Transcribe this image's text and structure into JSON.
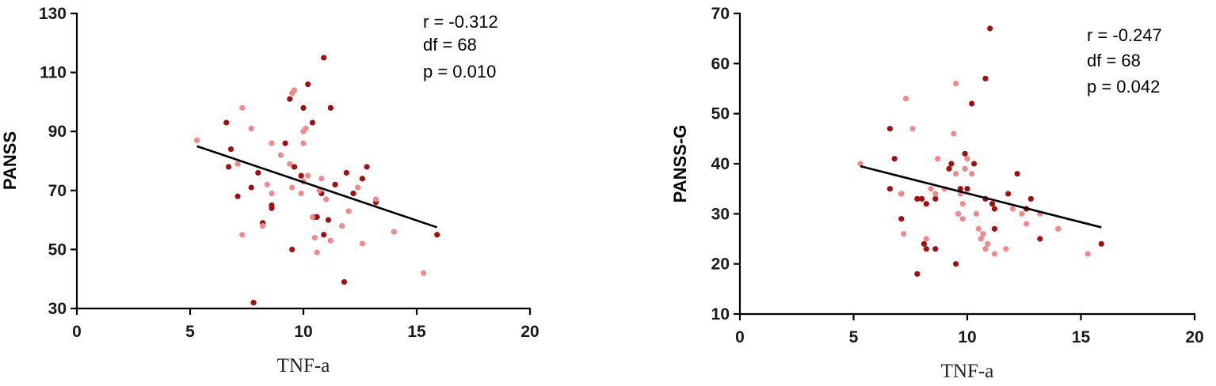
{
  "colors": {
    "dark": "#a30f0f",
    "light": "#f2888a",
    "line": "#000000"
  },
  "chart_data": [
    {
      "type": "scatter",
      "xlabel": "TNF-a",
      "ylabel": "PANSS",
      "xlim": [
        0,
        20
      ],
      "ylim": [
        30,
        130
      ],
      "xticks": [
        "0",
        "5",
        "10",
        "15",
        "20"
      ],
      "yticks": [
        "30",
        "50",
        "70",
        "90",
        "110",
        "130"
      ],
      "stats": [
        "r = -0.312",
        "df = 68",
        "p = 0.010"
      ],
      "fit": {
        "x": [
          5.3,
          15.9
        ],
        "y": [
          85,
          57.5
        ]
      },
      "series": [
        {
          "color": "dark",
          "points": [
            [
              6.6,
              93
            ],
            [
              6.7,
              78
            ],
            [
              6.8,
              84
            ],
            [
              7.1,
              68
            ],
            [
              7.7,
              71
            ],
            [
              7.8,
              32
            ],
            [
              8.0,
              76
            ],
            [
              8.2,
              59
            ],
            [
              8.6,
              65
            ],
            [
              8.6,
              64
            ],
            [
              9.2,
              86
            ],
            [
              9.4,
              101
            ],
            [
              9.5,
              50
            ],
            [
              9.6,
              78
            ],
            [
              9.9,
              75
            ],
            [
              10.0,
              98
            ],
            [
              10.2,
              106
            ],
            [
              10.4,
              93
            ],
            [
              10.5,
              61
            ],
            [
              10.6,
              61
            ],
            [
              10.8,
              69
            ],
            [
              10.9,
              55
            ],
            [
              10.9,
              115
            ],
            [
              11.1,
              60
            ],
            [
              11.2,
              98
            ],
            [
              11.4,
              72
            ],
            [
              11.8,
              39
            ],
            [
              11.9,
              76
            ],
            [
              12.2,
              69
            ],
            [
              12.6,
              74
            ],
            [
              12.8,
              78
            ],
            [
              13.2,
              66
            ],
            [
              15.9,
              55
            ]
          ]
        },
        {
          "color": "light",
          "points": [
            [
              5.3,
              87
            ],
            [
              7.1,
              79
            ],
            [
              7.3,
              55
            ],
            [
              7.3,
              98
            ],
            [
              7.7,
              91
            ],
            [
              8.2,
              58
            ],
            [
              8.4,
              72
            ],
            [
              8.6,
              69
            ],
            [
              8.6,
              86
            ],
            [
              9.0,
              82
            ],
            [
              9.4,
              79
            ],
            [
              9.5,
              71
            ],
            [
              9.5,
              103
            ],
            [
              9.6,
              104
            ],
            [
              9.9,
              69
            ],
            [
              10.0,
              86
            ],
            [
              10.0,
              73
            ],
            [
              10.0,
              90
            ],
            [
              10.1,
              91
            ],
            [
              10.2,
              75
            ],
            [
              10.4,
              61
            ],
            [
              10.5,
              54
            ],
            [
              10.6,
              49
            ],
            [
              10.7,
              70
            ],
            [
              10.8,
              74
            ],
            [
              11.0,
              67
            ],
            [
              11.2,
              53
            ],
            [
              11.7,
              58
            ],
            [
              12.0,
              63
            ],
            [
              12.4,
              71
            ],
            [
              12.6,
              52
            ],
            [
              13.2,
              67
            ],
            [
              14.0,
              56
            ],
            [
              15.3,
              42
            ]
          ]
        }
      ]
    },
    {
      "type": "scatter",
      "xlabel": "TNF-a",
      "ylabel": "PANSS-G",
      "xlim": [
        0,
        20
      ],
      "ylim": [
        10,
        70
      ],
      "xticks": [
        "0",
        "5",
        "10",
        "15",
        "20"
      ],
      "yticks": [
        "10",
        "20",
        "30",
        "40",
        "50",
        "60",
        "70"
      ],
      "stats": [
        "r = -0.247",
        "df = 68",
        "p = 0.042"
      ],
      "fit": {
        "x": [
          5.3,
          15.9
        ],
        "y": [
          39.5,
          27.3
        ]
      },
      "series": [
        {
          "color": "dark",
          "points": [
            [
              6.6,
              47
            ],
            [
              6.6,
              35
            ],
            [
              6.8,
              41
            ],
            [
              7.1,
              34
            ],
            [
              7.1,
              29
            ],
            [
              7.8,
              33
            ],
            [
              7.8,
              18
            ],
            [
              8.0,
              33
            ],
            [
              8.1,
              24
            ],
            [
              8.2,
              23
            ],
            [
              8.2,
              32
            ],
            [
              8.6,
              23
            ],
            [
              8.6,
              33
            ],
            [
              9.2,
              39
            ],
            [
              9.3,
              40
            ],
            [
              9.5,
              20
            ],
            [
              9.7,
              35
            ],
            [
              9.9,
              42
            ],
            [
              10.0,
              35
            ],
            [
              10.2,
              52
            ],
            [
              10.3,
              40
            ],
            [
              10.8,
              57
            ],
            [
              10.8,
              33
            ],
            [
              11.0,
              67
            ],
            [
              11.1,
              32
            ],
            [
              11.2,
              31
            ],
            [
              11.2,
              27
            ],
            [
              11.8,
              34
            ],
            [
              12.2,
              38
            ],
            [
              12.6,
              31
            ],
            [
              12.8,
              33
            ],
            [
              13.2,
              25
            ],
            [
              15.9,
              24
            ]
          ]
        },
        {
          "color": "light",
          "points": [
            [
              5.3,
              40
            ],
            [
              7.1,
              34
            ],
            [
              7.2,
              26
            ],
            [
              7.3,
              53
            ],
            [
              7.6,
              47
            ],
            [
              8.2,
              25
            ],
            [
              8.4,
              35
            ],
            [
              8.6,
              34
            ],
            [
              8.7,
              41
            ],
            [
              9.0,
              35
            ],
            [
              9.4,
              46
            ],
            [
              9.5,
              56
            ],
            [
              9.5,
              38
            ],
            [
              9.6,
              30
            ],
            [
              9.7,
              34
            ],
            [
              9.8,
              32
            ],
            [
              9.8,
              29
            ],
            [
              9.9,
              39
            ],
            [
              10.0,
              41
            ],
            [
              10.2,
              38
            ],
            [
              10.4,
              30
            ],
            [
              10.5,
              27
            ],
            [
              10.6,
              25
            ],
            [
              10.7,
              26
            ],
            [
              10.8,
              23
            ],
            [
              10.9,
              24
            ],
            [
              11.2,
              22
            ],
            [
              11.7,
              23
            ],
            [
              12.0,
              31
            ],
            [
              12.4,
              30
            ],
            [
              12.6,
              28
            ],
            [
              13.2,
              30
            ],
            [
              14.0,
              27
            ],
            [
              15.3,
              22
            ]
          ]
        }
      ]
    }
  ]
}
